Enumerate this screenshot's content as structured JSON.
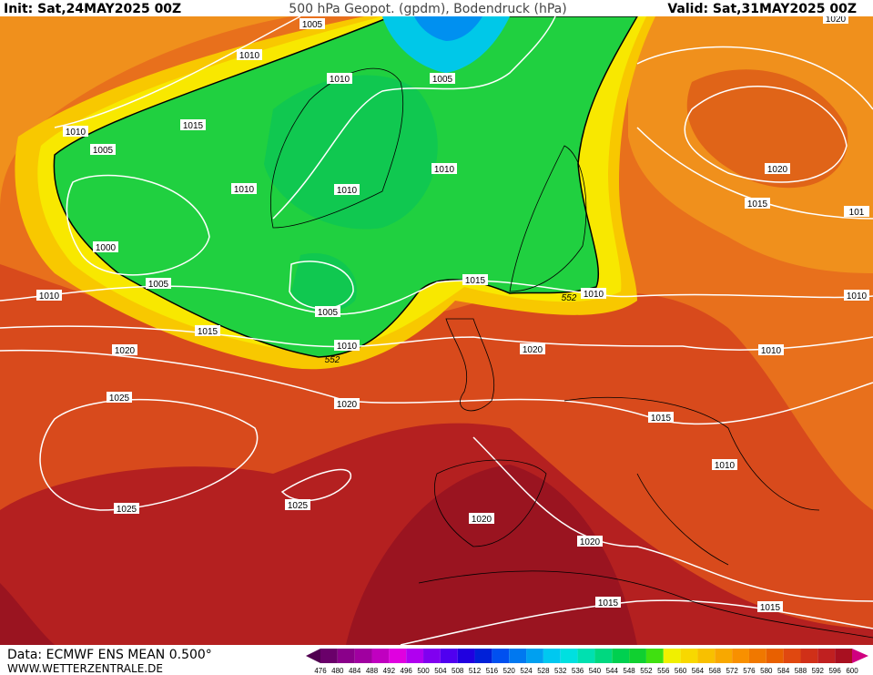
{
  "header": {
    "init": "Init: Sat,24MAY2025 00Z",
    "title": "500 hPa Geopot. (gpdm), Bodendruck (hPa)",
    "valid": "Valid: Sat,31MAY2025 00Z"
  },
  "isobar_labels": [
    "1005",
    "1010",
    "1010",
    "1005",
    "1010",
    "1015",
    "1005",
    "1010",
    "1010",
    "1010",
    "1020",
    "1020",
    "1015",
    "101",
    "1000",
    "1005",
    "1010",
    "1015",
    "1010",
    "1010",
    "1005",
    "1015",
    "1010",
    "1020",
    "1020",
    "1010",
    "1025",
    "1020",
    "1015",
    "1010",
    "1025",
    "1025",
    "1020",
    "1020",
    "1015",
    "1015"
  ],
  "height_labels": [
    "552",
    "552"
  ],
  "legend": {
    "ticks": [
      476,
      480,
      484,
      488,
      492,
      496,
      500,
      504,
      508,
      512,
      516,
      520,
      524,
      528,
      532,
      536,
      540,
      544,
      548,
      552,
      556,
      560,
      564,
      568,
      572,
      576,
      580,
      584,
      588,
      592,
      596,
      600
    ]
  },
  "footer": {
    "source": "Data: ECMWF ENS MEAN 0.500°",
    "site": "WWW.WETTERZENTRALE.DE"
  }
}
